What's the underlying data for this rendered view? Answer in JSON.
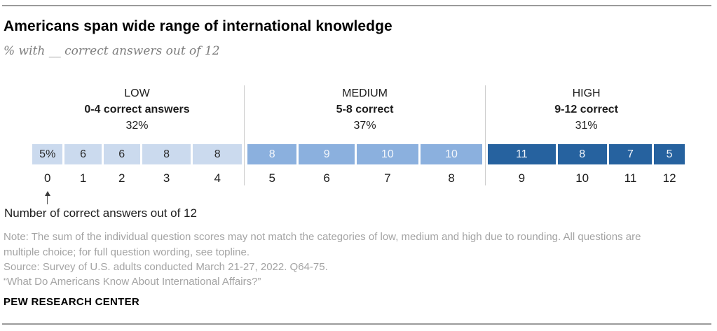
{
  "header": {
    "title": "Americans span wide range of international knowledge",
    "subtitle": "% with __ correct answers out of 12"
  },
  "chart_data": {
    "type": "bar",
    "title": "Americans span wide range of international knowledge",
    "subtitle": "% with __ correct answers out of 12",
    "xlabel": "Number of correct answers out of 12",
    "x_range": [
      0,
      12
    ],
    "unit": "% of U.S. adults",
    "legend_position": "none",
    "grid": false,
    "divider_color": "#cccccc",
    "groups": [
      {
        "name": "LOW",
        "range_label": "0-4 correct answers",
        "share_label": "32%",
        "color": "#cbdaee",
        "label_color": "#2b2b2b",
        "segments": [
          {
            "x": "0",
            "value": 5,
            "label": "5%"
          },
          {
            "x": "1",
            "value": 6,
            "label": "6"
          },
          {
            "x": "2",
            "value": 6,
            "label": "6"
          },
          {
            "x": "3",
            "value": 8,
            "label": "8"
          },
          {
            "x": "4",
            "value": 8,
            "label": "8"
          }
        ]
      },
      {
        "name": "MEDIUM",
        "range_label": "5-8 correct",
        "share_label": "37%",
        "color": "#8bb0de",
        "label_color": "#f3f6fb",
        "segments": [
          {
            "x": "5",
            "value": 8,
            "label": "8"
          },
          {
            "x": "6",
            "value": 9,
            "label": "9"
          },
          {
            "x": "7",
            "value": 10,
            "label": "10"
          },
          {
            "x": "8",
            "value": 10,
            "label": "10"
          }
        ]
      },
      {
        "name": "HIGH",
        "range_label": "9-12 correct",
        "share_label": "31%",
        "color": "#26629f",
        "label_color": "#f3f6fb",
        "segments": [
          {
            "x": "9",
            "value": 11,
            "label": "11"
          },
          {
            "x": "10",
            "value": 8,
            "label": "8"
          },
          {
            "x": "11",
            "value": 7,
            "label": "7"
          },
          {
            "x": "12",
            "value": 5,
            "label": "5"
          }
        ]
      }
    ]
  },
  "annotation": {
    "axis_caption": "Number of correct answers out of 12"
  },
  "footer": {
    "note": "Note: The sum of the individual question scores may not match the categories of low, medium and high due to rounding. All questions are multiple choice; for full question wording, see topline.",
    "source": "Source: Survey of U.S. adults conducted March 21-27, 2022. Q64-75.",
    "quote": "“What Do Americans Know About International Affairs?”",
    "brand": "PEW RESEARCH CENTER"
  }
}
